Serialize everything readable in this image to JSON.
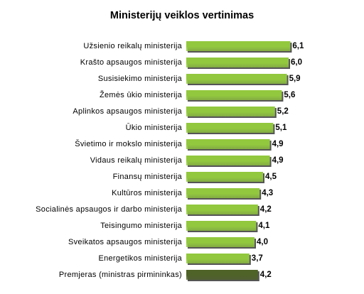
{
  "chart_data": {
    "type": "barh",
    "title": "Ministerijų veiklos vertinimas",
    "categories": [
      "Užsienio reikalų ministerija",
      "Krašto apsaugos ministerija",
      "Susisiekimo ministerija",
      "Žemės ūkio ministerija",
      "Aplinkos apsaugos ministerija",
      "Ūkio ministerija",
      "Švietimo ir mokslo ministerija",
      "Vidaus reikalų ministerija",
      "Finansų ministerija",
      "Kultūros ministerija",
      "Socialinės apsaugos ir darbo ministerija",
      "Teisingumo ministerija",
      "Sveikatos apsaugos ministerija",
      "Energetikos ministerija",
      "Premjeras (ministras pirmininkas)"
    ],
    "values": [
      6.1,
      6.0,
      5.9,
      5.6,
      5.2,
      5.1,
      4.9,
      4.9,
      4.5,
      4.3,
      4.2,
      4.1,
      4.0,
      3.7,
      4.2
    ],
    "value_labels": [
      "6,1",
      "6,0",
      "5,9",
      "5,6",
      "5,2",
      "5,1",
      "4,9",
      "4,9",
      "4,5",
      "4,3",
      "4,2",
      "4,1",
      "4,0",
      "3,7",
      "4,2"
    ],
    "colors": [
      "#92c83e",
      "#92c83e",
      "#92c83e",
      "#92c83e",
      "#92c83e",
      "#92c83e",
      "#92c83e",
      "#92c83e",
      "#92c83e",
      "#92c83e",
      "#92c83e",
      "#92c83e",
      "#92c83e",
      "#92c83e",
      "#4f6228"
    ]
  }
}
